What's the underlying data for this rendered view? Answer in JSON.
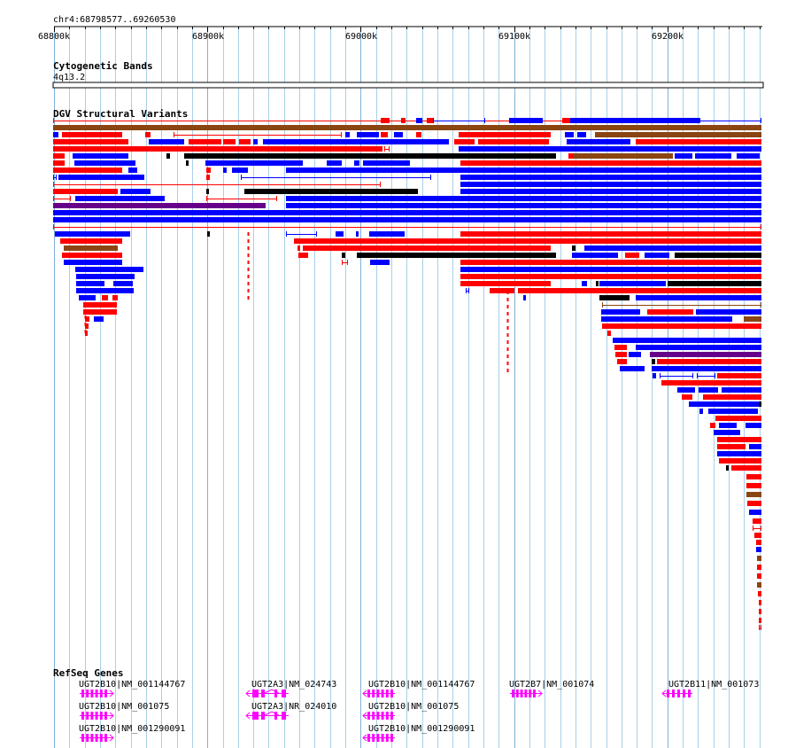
{
  "location_label": "chr4:68798577..69260530",
  "ruler": {
    "ticks": [
      "68800k",
      "68900k",
      "69000k",
      "69100k",
      "69200k"
    ]
  },
  "tracks": {
    "cytoband": {
      "title": "Cytogenetic Bands",
      "band": "4q13.2"
    },
    "dgv": {
      "title": "DGV Structural Variants"
    },
    "refseq": {
      "title": "RefSeq Genes"
    }
  },
  "genes": [
    {
      "label": "UGT2B10|NM_001144767",
      "strand": "+"
    },
    {
      "label": "UGT2B10|NM_001075",
      "strand": "+"
    },
    {
      "label": "UGT2B10|NM_001290091",
      "strand": "+"
    },
    {
      "label": "UGT2A3|NM_024743",
      "strand": "-"
    },
    {
      "label": "UGT2A3|NR_024010",
      "strand": "-"
    },
    {
      "label": "UGT2B10|NM_001144767",
      "strand": "-"
    },
    {
      "label": "UGT2B10|NM_001075",
      "strand": "-"
    },
    {
      "label": "UGT2B10|NM_001290091",
      "strand": "-"
    },
    {
      "label": "UGT2B7|NM_001074",
      "strand": "+"
    },
    {
      "label": "UGT2B11|NM_001073",
      "strand": "-"
    }
  ],
  "colors": {
    "gain": "#ff0000",
    "loss": "#0000ff",
    "complex": "#000000",
    "inversion": "#66008a",
    "gain_loss": "#8b4513",
    "gene": "#ff00ff",
    "grid": "#a8d0e8"
  }
}
